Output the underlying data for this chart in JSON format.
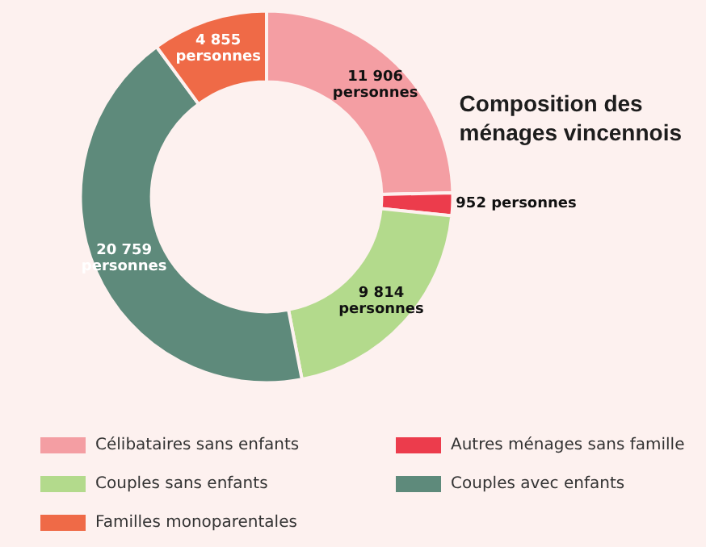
{
  "chart_data": {
    "type": "donut",
    "title": "Composition des\nménages vincennois",
    "categories": [
      "Célibataires sans enfants",
      "Autres ménages sans famille",
      "Couples sans enfants",
      "Couples avec enfants",
      "Familles monoparentales"
    ],
    "values": [
      11906,
      952,
      9814,
      20759,
      4855
    ],
    "value_labels": [
      "11 906\npersonnes",
      "952 personnes",
      "9 814\npersonnes",
      "20 759\npersonnes",
      "4 855\npersonnes"
    ],
    "colors": [
      "#f49ea3",
      "#ec3c4c",
      "#b3da8c",
      "#5e8a7b",
      "#ef6a47"
    ],
    "legend": "bottom"
  }
}
